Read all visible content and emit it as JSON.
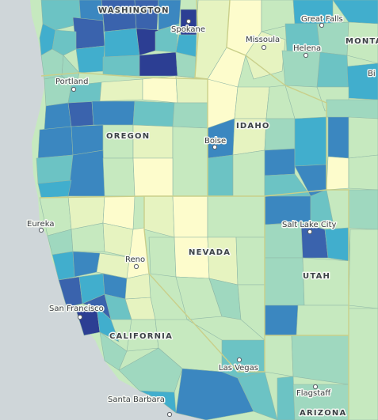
{
  "colors": {
    "ocean": "#cfd6d9",
    "scale": [
      "#fdfccc",
      "#e6f3c0",
      "#c6e9bf",
      "#9fd8bf",
      "#6cc3c4",
      "#41aecd",
      "#3b87c0",
      "#3a63ad",
      "#2c3e93"
    ],
    "state_line": "#c9cf8a",
    "county_line": "#8fb7a6"
  },
  "states": [
    {
      "name": "WASHINGTON"
    },
    {
      "name": "OREGON"
    },
    {
      "name": "IDAHO"
    },
    {
      "name": "MONTA"
    },
    {
      "name": "NEVADA"
    },
    {
      "name": "UTAH"
    },
    {
      "name": "CALIFORNIA"
    },
    {
      "name": "ARIZONA"
    }
  ],
  "cities": [
    {
      "name": "Spokane"
    },
    {
      "name": "Great Falls"
    },
    {
      "name": "Missoula"
    },
    {
      "name": "Helena"
    },
    {
      "name": "Bi"
    },
    {
      "name": "Portland"
    },
    {
      "name": "Boise"
    },
    {
      "name": "Eureka"
    },
    {
      "name": "Salt Lake City"
    },
    {
      "name": "Reno"
    },
    {
      "name": "San Francisco"
    },
    {
      "name": "Las Vegas"
    },
    {
      "name": "Flagstaff"
    },
    {
      "name": "Santa Barbara"
    }
  ]
}
